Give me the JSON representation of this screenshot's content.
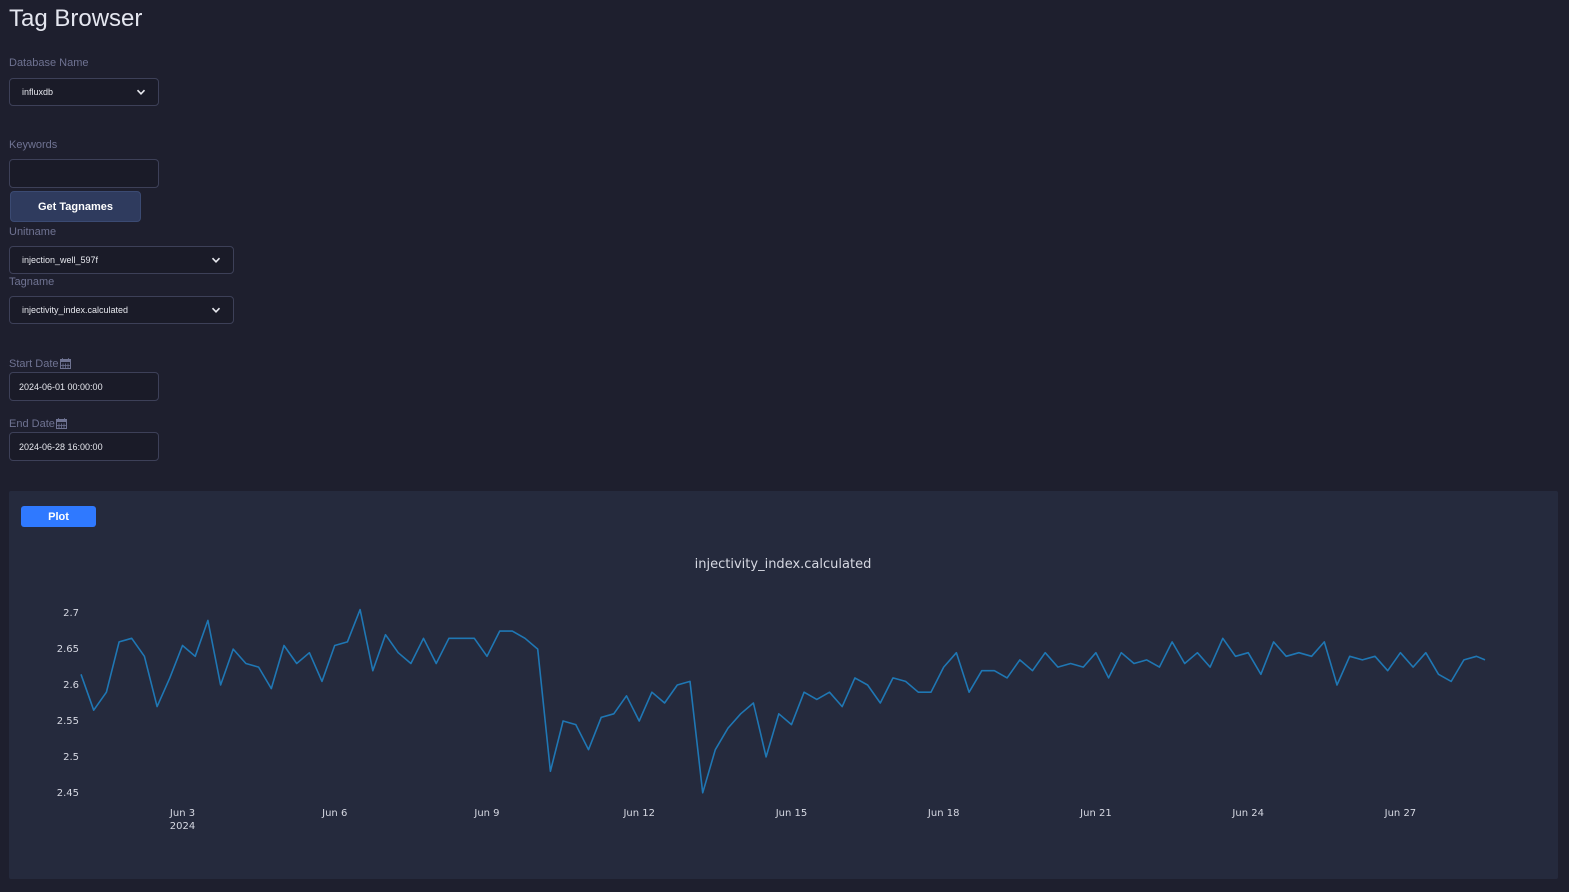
{
  "page": {
    "title": "Tag Browser"
  },
  "form": {
    "database": {
      "label": "Database Name",
      "value": "influxdb"
    },
    "keywords": {
      "label": "Keywords",
      "value": ""
    },
    "get_button": "Get Tagnames",
    "unitname": {
      "label": "Unitname",
      "value": "injection_well_597f"
    },
    "tagname": {
      "label": "Tagname",
      "value": "injectivity_index.calculated"
    },
    "start_date": {
      "label": "Start Date",
      "value": "2024-06-01 00:00:00"
    },
    "end_date": {
      "label": "End Date",
      "value": "2024-06-28 16:00:00"
    },
    "calendar_icon": "calendar-icon"
  },
  "plot": {
    "button": "Plot"
  },
  "colors": {
    "background": "#1e1f2e",
    "panel": "#252a3d",
    "accent": "#2f79ff",
    "line": "#1f77b4"
  },
  "chart_data": {
    "type": "line",
    "title": "injectivity_index.calculated",
    "xlabel": "",
    "ylabel": "",
    "x_range": [
      "2024-06-01 00:00:00",
      "2024-06-28 16:00:00"
    ],
    "ylim": [
      2.44,
      2.71
    ],
    "yticks": [
      2.45,
      2.5,
      2.55,
      2.6,
      2.65,
      2.7
    ],
    "xticks": [
      {
        "date": "2024-06-03",
        "label": "Jun 3",
        "sublabel": "2024"
      },
      {
        "date": "2024-06-06",
        "label": "Jun 6"
      },
      {
        "date": "2024-06-09",
        "label": "Jun 9"
      },
      {
        "date": "2024-06-12",
        "label": "Jun 12"
      },
      {
        "date": "2024-06-15",
        "label": "Jun 15"
      },
      {
        "date": "2024-06-18",
        "label": "Jun 18"
      },
      {
        "date": "2024-06-21",
        "label": "Jun 21"
      },
      {
        "date": "2024-06-24",
        "label": "Jun 24"
      },
      {
        "date": "2024-06-27",
        "label": "Jun 27"
      }
    ],
    "grid": false,
    "series": [
      {
        "x": [
          "2024-06-01 00:00",
          "2024-06-01 06:00",
          "2024-06-01 12:00",
          "2024-06-01 18:00",
          "2024-06-02 00:00",
          "2024-06-02 06:00",
          "2024-06-02 12:00",
          "2024-06-02 18:00",
          "2024-06-03 00:00",
          "2024-06-03 06:00",
          "2024-06-03 12:00",
          "2024-06-03 18:00",
          "2024-06-04 00:00",
          "2024-06-04 06:00",
          "2024-06-04 12:00",
          "2024-06-04 18:00",
          "2024-06-05 00:00",
          "2024-06-05 06:00",
          "2024-06-05 12:00",
          "2024-06-05 18:00",
          "2024-06-06 00:00",
          "2024-06-06 06:00",
          "2024-06-06 12:00",
          "2024-06-06 18:00",
          "2024-06-07 00:00",
          "2024-06-07 06:00",
          "2024-06-07 12:00",
          "2024-06-07 18:00",
          "2024-06-08 00:00",
          "2024-06-08 06:00",
          "2024-06-08 12:00",
          "2024-06-08 18:00",
          "2024-06-09 00:00",
          "2024-06-09 06:00",
          "2024-06-09 12:00",
          "2024-06-09 18:00",
          "2024-06-10 00:00",
          "2024-06-10 06:00",
          "2024-06-10 12:00",
          "2024-06-10 18:00",
          "2024-06-11 00:00",
          "2024-06-11 06:00",
          "2024-06-11 12:00",
          "2024-06-11 18:00",
          "2024-06-12 00:00",
          "2024-06-12 06:00",
          "2024-06-12 12:00",
          "2024-06-12 18:00",
          "2024-06-13 00:00",
          "2024-06-13 06:00",
          "2024-06-13 12:00",
          "2024-06-13 18:00",
          "2024-06-14 00:00",
          "2024-06-14 06:00",
          "2024-06-14 12:00",
          "2024-06-14 18:00",
          "2024-06-15 00:00",
          "2024-06-15 06:00",
          "2024-06-15 12:00",
          "2024-06-15 18:00",
          "2024-06-16 00:00",
          "2024-06-16 06:00",
          "2024-06-16 12:00",
          "2024-06-16 18:00",
          "2024-06-17 00:00",
          "2024-06-17 06:00",
          "2024-06-17 12:00",
          "2024-06-17 18:00",
          "2024-06-18 00:00",
          "2024-06-18 06:00",
          "2024-06-18 12:00",
          "2024-06-18 18:00",
          "2024-06-19 00:00",
          "2024-06-19 06:00",
          "2024-06-19 12:00",
          "2024-06-19 18:00",
          "2024-06-20 00:00",
          "2024-06-20 06:00",
          "2024-06-20 12:00",
          "2024-06-20 18:00",
          "2024-06-21 00:00",
          "2024-06-21 06:00",
          "2024-06-21 12:00",
          "2024-06-21 18:00",
          "2024-06-22 00:00",
          "2024-06-22 06:00",
          "2024-06-22 12:00",
          "2024-06-22 18:00",
          "2024-06-23 00:00",
          "2024-06-23 06:00",
          "2024-06-23 12:00",
          "2024-06-23 18:00",
          "2024-06-24 00:00",
          "2024-06-24 06:00",
          "2024-06-24 12:00",
          "2024-06-24 18:00",
          "2024-06-25 00:00",
          "2024-06-25 06:00",
          "2024-06-25 12:00",
          "2024-06-25 18:00",
          "2024-06-26 00:00",
          "2024-06-26 06:00",
          "2024-06-26 12:00",
          "2024-06-26 18:00",
          "2024-06-27 00:00",
          "2024-06-27 06:00",
          "2024-06-27 12:00",
          "2024-06-27 18:00",
          "2024-06-28 00:00",
          "2024-06-28 06:00",
          "2024-06-28 12:00",
          "2024-06-28 16:00"
        ],
        "values": [
          2.615,
          2.565,
          2.59,
          2.66,
          2.665,
          2.64,
          2.57,
          2.61,
          2.655,
          2.64,
          2.69,
          2.6,
          2.65,
          2.63,
          2.625,
          2.595,
          2.655,
          2.63,
          2.645,
          2.605,
          2.655,
          2.66,
          2.705,
          2.62,
          2.67,
          2.645,
          2.63,
          2.665,
          2.63,
          2.665,
          2.665,
          2.665,
          2.64,
          2.675,
          2.675,
          2.665,
          2.65,
          2.48,
          2.55,
          2.545,
          2.51,
          2.555,
          2.56,
          2.585,
          2.55,
          2.59,
          2.575,
          2.6,
          2.605,
          2.45,
          2.51,
          2.54,
          2.56,
          2.575,
          2.5,
          2.56,
          2.545,
          2.59,
          2.58,
          2.59,
          2.57,
          2.61,
          2.6,
          2.575,
          2.61,
          2.605,
          2.59,
          2.59,
          2.625,
          2.645,
          2.59,
          2.62,
          2.62,
          2.61,
          2.635,
          2.62,
          2.645,
          2.625,
          2.63,
          2.625,
          2.645,
          2.61,
          2.645,
          2.63,
          2.635,
          2.625,
          2.66,
          2.63,
          2.645,
          2.625,
          2.665,
          2.64,
          2.645,
          2.615,
          2.66,
          2.64,
          2.645,
          2.64,
          2.66,
          2.6,
          2.64,
          2.635,
          2.64,
          2.62,
          2.645,
          2.625,
          2.645,
          2.615,
          2.605,
          2.635,
          2.64,
          2.635
        ],
        "color": "#1f77b4"
      }
    ]
  }
}
